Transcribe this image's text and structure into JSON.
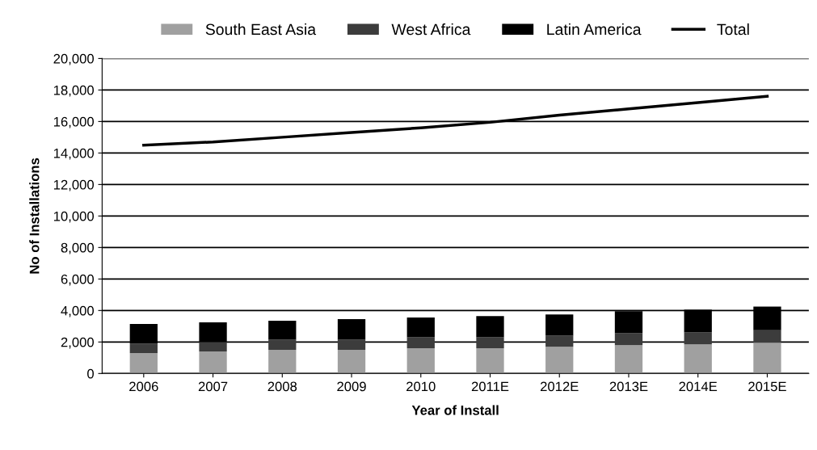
{
  "chart_data": {
    "type": "bar",
    "stacked": true,
    "xlabel": "Year of Install",
    "ylabel": "No of Installations",
    "categories": [
      "2006",
      "2007",
      "2008",
      "2009",
      "2010",
      "2011E",
      "2012E",
      "2013E",
      "2014E",
      "2015E"
    ],
    "series": [
      {
        "name": "South East Asia",
        "color": "#a0a0a0",
        "values": [
          1300,
          1400,
          1500,
          1500,
          1600,
          1600,
          1700,
          1800,
          1850,
          1950
        ]
      },
      {
        "name": "West Africa",
        "color": "#3c3c3c",
        "values": [
          600,
          600,
          650,
          650,
          700,
          700,
          700,
          750,
          750,
          800
        ]
      },
      {
        "name": "Latin America",
        "color": "#000000",
        "values": [
          1250,
          1250,
          1200,
          1300,
          1250,
          1350,
          1350,
          1400,
          1450,
          1500
        ]
      },
      {
        "name": "Total",
        "type": "line",
        "color": "#000000",
        "values": [
          14500,
          14700,
          15000,
          15300,
          15600,
          15950,
          16400,
          16800,
          17200,
          17600
        ]
      }
    ],
    "ylim": [
      0,
      20000
    ],
    "yticks": [
      0,
      {
        "value": 2000,
        "label": "2,000"
      },
      {
        "value": 4000,
        "label": "4,000"
      },
      {
        "value": 6000,
        "label": "6,000"
      },
      {
        "value": 8000,
        "label": "8,000"
      },
      {
        "value": 10000,
        "label": "10,000"
      },
      {
        "value": 12000,
        "label": "12,000"
      },
      {
        "value": 14000,
        "label": "14,000"
      },
      {
        "value": 16000,
        "label": "16,000"
      },
      {
        "value": 18000,
        "label": "18,000"
      },
      {
        "value": 20000,
        "label": "20,000"
      }
    ],
    "grid": "y",
    "legend": "top",
    "marker": "none",
    "line_style": "solid"
  }
}
